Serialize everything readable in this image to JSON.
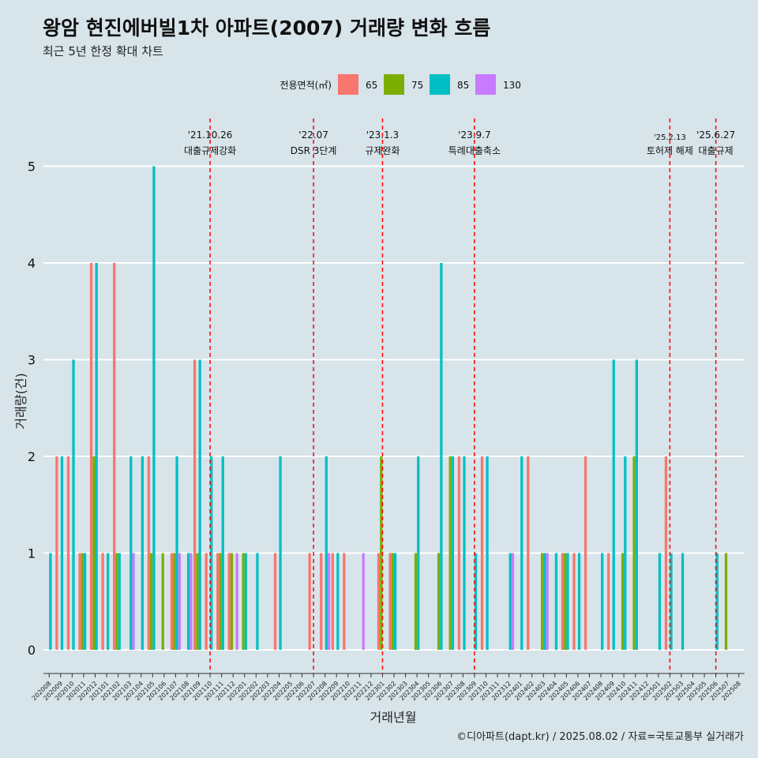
{
  "title": "왕암 현진에버빌1차 아파트(2007) 거래량 변화 흐름",
  "subtitle": "최근 5년 한정 확대 차트",
  "caption": "©디아파트(dapt.kr) / 2025.08.02 / 자료=국토교통부 실거래가",
  "colors": {
    "65": "#f8766d",
    "75": "#7cae00",
    "85": "#00bfc4",
    "130": "#c77cff",
    "event": "#ff0000",
    "grid": "#ffffff"
  },
  "chart_data": {
    "type": "bar",
    "xlabel": "거래년월",
    "ylabel": "거래량(건)",
    "ylim": [
      0,
      5
    ],
    "yticks": [
      0,
      1,
      2,
      3,
      4,
      5
    ],
    "legend_title": "전용면적(㎡)",
    "legend": [
      "65",
      "75",
      "85",
      "130"
    ],
    "categories": [
      "202008",
      "202009",
      "202010",
      "202011",
      "202012",
      "202101",
      "202102",
      "202103",
      "202104",
      "202105",
      "202106",
      "202107",
      "202108",
      "202109",
      "202110",
      "202111",
      "202112",
      "202201",
      "202202",
      "202203",
      "202204",
      "202205",
      "202206",
      "202207",
      "202208",
      "202209",
      "202210",
      "202211",
      "202212",
      "202301",
      "202302",
      "202303",
      "202304",
      "202305",
      "202306",
      "202307",
      "202308",
      "202309",
      "202310",
      "202311",
      "202312",
      "202401",
      "202402",
      "202403",
      "202404",
      "202405",
      "202406",
      "202407",
      "202408",
      "202409",
      "202410",
      "202411",
      "202412",
      "202501",
      "202502",
      "202503",
      "202504",
      "202505",
      "202506",
      "202507",
      "202508"
    ],
    "series": [
      {
        "name": "65",
        "values": [
          0,
          2,
          2,
          1,
          4,
          1,
          4,
          0,
          0,
          2,
          0,
          1,
          0,
          3,
          1,
          1,
          1,
          0,
          0,
          0,
          1,
          0,
          0,
          1,
          1,
          1,
          1,
          0,
          0,
          1,
          1,
          0,
          0,
          0,
          0,
          0,
          2,
          0,
          2,
          0,
          0,
          0,
          2,
          0,
          0,
          1,
          1,
          2,
          0,
          1,
          0,
          0,
          0,
          0,
          2,
          0,
          0,
          0,
          0,
          0,
          0
        ]
      },
      {
        "name": "75",
        "values": [
          0,
          0,
          0,
          1,
          2,
          0,
          1,
          0,
          0,
          1,
          1,
          1,
          0,
          1,
          0,
          1,
          1,
          1,
          0,
          0,
          0,
          0,
          0,
          0,
          0,
          0,
          0,
          0,
          0,
          2,
          1,
          0,
          1,
          0,
          1,
          2,
          0,
          0,
          0,
          0,
          0,
          0,
          0,
          1,
          0,
          1,
          0,
          0,
          0,
          0,
          1,
          2,
          0,
          0,
          0,
          0,
          0,
          0,
          0,
          1,
          0
        ]
      },
      {
        "name": "85",
        "values": [
          1,
          2,
          3,
          1,
          4,
          1,
          1,
          2,
          2,
          5,
          0,
          2,
          1,
          3,
          2,
          2,
          0,
          1,
          1,
          0,
          2,
          0,
          0,
          0,
          2,
          1,
          0,
          0,
          0,
          0,
          1,
          0,
          2,
          0,
          4,
          2,
          2,
          1,
          2,
          0,
          1,
          2,
          0,
          1,
          1,
          1,
          1,
          0,
          1,
          3,
          2,
          3,
          0,
          1,
          1,
          1,
          0,
          0,
          1,
          0,
          0
        ]
      },
      {
        "name": "130",
        "values": [
          0,
          0,
          0,
          0,
          0,
          0,
          0,
          1,
          0,
          0,
          0,
          1,
          1,
          0,
          0,
          0,
          1,
          0,
          0,
          0,
          0,
          0,
          0,
          0,
          1,
          0,
          0,
          1,
          0,
          0,
          0,
          0,
          0,
          0,
          0,
          0,
          0,
          0,
          0,
          0,
          1,
          0,
          0,
          1,
          0,
          0,
          0,
          0,
          0,
          0,
          0,
          0,
          0,
          0,
          0,
          0,
          0,
          0,
          0,
          0,
          0
        ]
      }
    ],
    "events": [
      {
        "month": "202110",
        "date": "'21.10.26",
        "label": "대출규제강화"
      },
      {
        "month": "202207",
        "date": "'22.07",
        "label": "DSR 3단계"
      },
      {
        "month": "202301",
        "date": "'23.1.3",
        "label": "규제완화"
      },
      {
        "month": "202309",
        "date": "'23.9.7",
        "label": "특례대출축소"
      },
      {
        "month": "202502",
        "date": "'25.2.13",
        "label": "토허제 해제"
      },
      {
        "month": "202506",
        "date": "'25.6.27",
        "label": "대출규제"
      }
    ]
  }
}
